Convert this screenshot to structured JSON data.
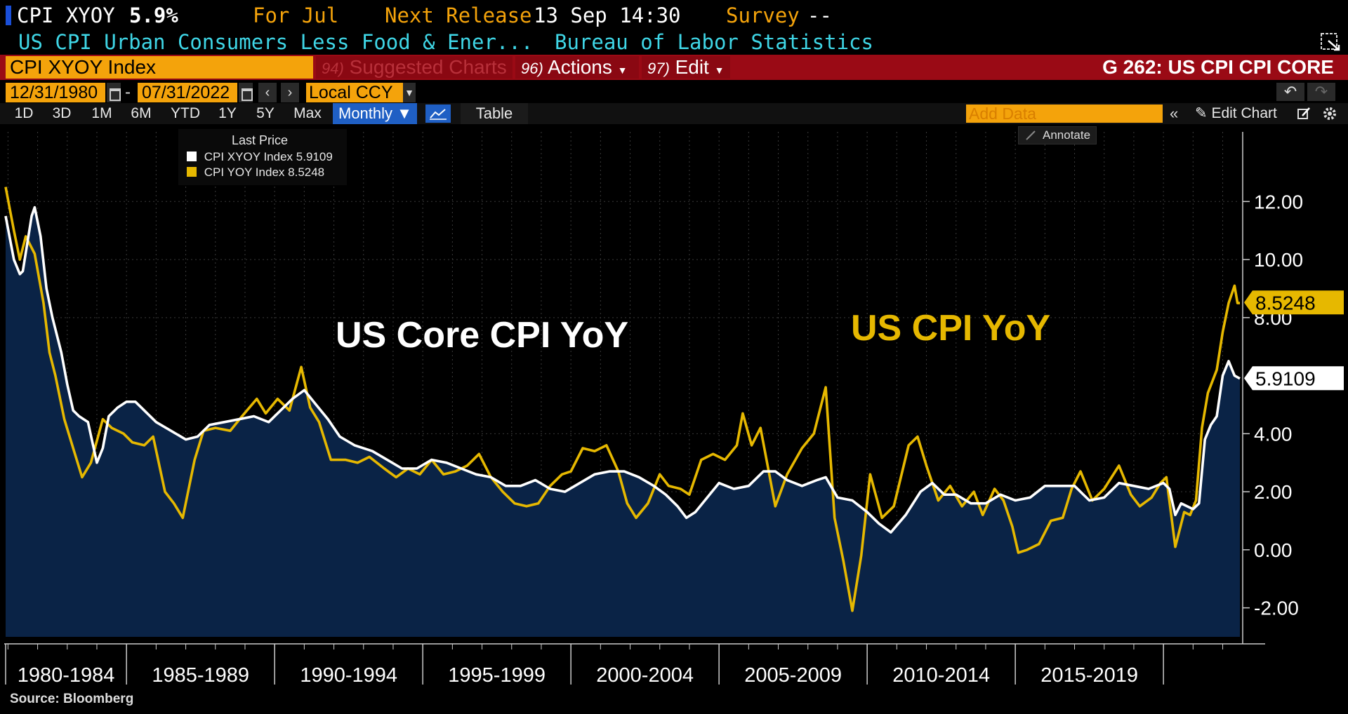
{
  "header": {
    "ticker": "CPI XYOY",
    "last_value": "5.9%",
    "for_label": "For Jul",
    "next_release_label": "Next Release",
    "next_release_value": "13 Sep 14:30",
    "survey_label": "Survey",
    "survey_value": "--",
    "description": "US CPI Urban Consumers Less Food & Ener...",
    "source_agency": "Bureau of Labor Statistics"
  },
  "toolbar": {
    "ticker_input": "CPI XYOY Index",
    "suggested_num": "94)",
    "suggested_label": "Suggested Charts",
    "actions_num": "96)",
    "actions_label": "Actions",
    "edit_num": "97)",
    "edit_label": "Edit",
    "chart_id": "G 262: US CPI CPI CORE",
    "start_date": "12/31/1980",
    "date_sep": "-",
    "end_date": "07/31/2022",
    "currency": "Local CCY",
    "ranges": [
      "1D",
      "3D",
      "1M",
      "6M",
      "YTD",
      "1Y",
      "5Y",
      "Max"
    ],
    "frequency": "Monthly",
    "table_label": "Table",
    "add_data_placeholder": "Add Data",
    "edit_chart_label": "Edit Chart",
    "annotate_label": "Annotate"
  },
  "legend": {
    "title": "Last Price",
    "items": [
      {
        "name": "CPI XYOY Index",
        "value": "5.9109",
        "color": "#ffffff"
      },
      {
        "name": "CPI YOY Index",
        "value": "8.5248",
        "color": "#e6b800"
      }
    ]
  },
  "colors": {
    "core_line": "#ffffff",
    "headline_line": "#e6b800",
    "area_fill": "#0a2346",
    "background": "#000000",
    "orange": "#f4a30b",
    "red_bar": "#9a0a15"
  },
  "chart_data": {
    "type": "line",
    "x_range": [
      1980.92,
      2022.58
    ],
    "ylim": [
      -3,
      14.4
    ],
    "y_ticks": [
      "12.00",
      "10.00",
      "8.00",
      "4.00",
      "2.00",
      "0.00",
      "-2.00"
    ],
    "y_tick_values": [
      12,
      10,
      8,
      4,
      2,
      0,
      -2
    ],
    "x_tick_labels": [
      "1980-1984",
      "1985-1989",
      "1990-1994",
      "1995-1999",
      "2000-2004",
      "2005-2009",
      "2010-2014",
      "2015-2019"
    ],
    "x_tick_starts": [
      1980,
      1985,
      1990,
      1995,
      2000,
      2005,
      2010,
      2015
    ],
    "annotations": [
      "US Core CPI YoY",
      "US CPI YoY"
    ],
    "last_labels": {
      "core": "5.9109",
      "headline": "8.5248"
    },
    "source": "Source: Bloomberg",
    "series": [
      {
        "name": "CPI XYOY Index",
        "style": "area",
        "points": [
          [
            1980.92,
            11.5
          ],
          [
            1981.2,
            10.0
          ],
          [
            1981.4,
            9.5
          ],
          [
            1981.5,
            9.6
          ],
          [
            1981.8,
            11.5
          ],
          [
            1981.9,
            11.8
          ],
          [
            1982.1,
            10.8
          ],
          [
            1982.3,
            9.0
          ],
          [
            1982.5,
            8.0
          ],
          [
            1982.8,
            6.8
          ],
          [
            1983.0,
            5.7
          ],
          [
            1983.2,
            4.8
          ],
          [
            1983.4,
            4.6
          ],
          [
            1983.7,
            4.4
          ],
          [
            1984.0,
            3.0
          ],
          [
            1984.2,
            3.5
          ],
          [
            1984.4,
            4.6
          ],
          [
            1984.7,
            4.9
          ],
          [
            1985.0,
            5.1
          ],
          [
            1985.3,
            5.1
          ],
          [
            1985.5,
            4.9
          ],
          [
            1986.0,
            4.4
          ],
          [
            1986.5,
            4.1
          ],
          [
            1987.0,
            3.8
          ],
          [
            1987.4,
            3.9
          ],
          [
            1987.8,
            4.3
          ],
          [
            1988.3,
            4.4
          ],
          [
            1988.8,
            4.5
          ],
          [
            1989.3,
            4.6
          ],
          [
            1989.8,
            4.4
          ],
          [
            1990.3,
            4.9
          ],
          [
            1990.6,
            5.2
          ],
          [
            1991.0,
            5.5
          ],
          [
            1991.4,
            5.0
          ],
          [
            1991.8,
            4.5
          ],
          [
            1992.2,
            3.9
          ],
          [
            1992.7,
            3.6
          ],
          [
            1993.3,
            3.4
          ],
          [
            1993.8,
            3.1
          ],
          [
            1994.3,
            2.8
          ],
          [
            1994.8,
            2.8
          ],
          [
            1995.3,
            3.1
          ],
          [
            1995.8,
            3.0
          ],
          [
            1996.3,
            2.8
          ],
          [
            1996.8,
            2.6
          ],
          [
            1997.3,
            2.5
          ],
          [
            1997.8,
            2.2
          ],
          [
            1998.3,
            2.2
          ],
          [
            1998.8,
            2.4
          ],
          [
            1999.3,
            2.1
          ],
          [
            1999.8,
            2.0
          ],
          [
            2000.3,
            2.3
          ],
          [
            2000.8,
            2.6
          ],
          [
            2001.3,
            2.7
          ],
          [
            2001.8,
            2.7
          ],
          [
            2002.3,
            2.5
          ],
          [
            2002.8,
            2.2
          ],
          [
            2003.2,
            1.9
          ],
          [
            2003.6,
            1.5
          ],
          [
            2003.9,
            1.1
          ],
          [
            2004.2,
            1.3
          ],
          [
            2004.6,
            1.8
          ],
          [
            2005.0,
            2.3
          ],
          [
            2005.5,
            2.1
          ],
          [
            2006.0,
            2.2
          ],
          [
            2006.5,
            2.7
          ],
          [
            2006.9,
            2.7
          ],
          [
            2007.3,
            2.4
          ],
          [
            2007.8,
            2.2
          ],
          [
            2008.3,
            2.4
          ],
          [
            2008.6,
            2.5
          ],
          [
            2009.0,
            1.8
          ],
          [
            2009.5,
            1.7
          ],
          [
            2010.0,
            1.3
          ],
          [
            2010.4,
            0.9
          ],
          [
            2010.8,
            0.6
          ],
          [
            2011.3,
            1.2
          ],
          [
            2011.8,
            2.0
          ],
          [
            2012.2,
            2.3
          ],
          [
            2012.6,
            1.9
          ],
          [
            2013.0,
            1.9
          ],
          [
            2013.5,
            1.6
          ],
          [
            2014.0,
            1.6
          ],
          [
            2014.5,
            1.9
          ],
          [
            2015.0,
            1.7
          ],
          [
            2015.5,
            1.8
          ],
          [
            2016.0,
            2.2
          ],
          [
            2016.5,
            2.2
          ],
          [
            2017.0,
            2.2
          ],
          [
            2017.5,
            1.7
          ],
          [
            2018.0,
            1.8
          ],
          [
            2018.5,
            2.3
          ],
          [
            2019.0,
            2.2
          ],
          [
            2019.5,
            2.1
          ],
          [
            2020.0,
            2.3
          ],
          [
            2020.2,
            2.1
          ],
          [
            2020.4,
            1.2
          ],
          [
            2020.6,
            1.6
          ],
          [
            2021.0,
            1.4
          ],
          [
            2021.2,
            1.6
          ],
          [
            2021.4,
            3.8
          ],
          [
            2021.6,
            4.3
          ],
          [
            2021.8,
            4.6
          ],
          [
            2022.0,
            6.0
          ],
          [
            2022.2,
            6.5
          ],
          [
            2022.4,
            6.0
          ],
          [
            2022.58,
            5.9
          ]
        ]
      },
      {
        "name": "CPI YOY Index",
        "style": "line",
        "points": [
          [
            1980.92,
            12.5
          ],
          [
            1981.2,
            11.0
          ],
          [
            1981.4,
            10.0
          ],
          [
            1981.6,
            10.8
          ],
          [
            1981.9,
            10.2
          ],
          [
            1982.2,
            8.5
          ],
          [
            1982.4,
            6.8
          ],
          [
            1982.6,
            6.0
          ],
          [
            1982.9,
            4.5
          ],
          [
            1983.2,
            3.5
          ],
          [
            1983.5,
            2.5
          ],
          [
            1983.8,
            3.0
          ],
          [
            1984.2,
            4.5
          ],
          [
            1984.5,
            4.2
          ],
          [
            1984.9,
            4.0
          ],
          [
            1985.2,
            3.7
          ],
          [
            1985.6,
            3.6
          ],
          [
            1985.9,
            3.9
          ],
          [
            1986.3,
            2.0
          ],
          [
            1986.6,
            1.6
          ],
          [
            1986.9,
            1.1
          ],
          [
            1987.3,
            3.1
          ],
          [
            1987.6,
            4.1
          ],
          [
            1988.0,
            4.2
          ],
          [
            1988.5,
            4.1
          ],
          [
            1988.9,
            4.6
          ],
          [
            1989.4,
            5.2
          ],
          [
            1989.7,
            4.7
          ],
          [
            1990.1,
            5.2
          ],
          [
            1990.5,
            4.8
          ],
          [
            1990.9,
            6.3
          ],
          [
            1991.2,
            4.9
          ],
          [
            1991.5,
            4.4
          ],
          [
            1991.9,
            3.1
          ],
          [
            1992.4,
            3.1
          ],
          [
            1992.8,
            3.0
          ],
          [
            1993.2,
            3.2
          ],
          [
            1993.7,
            2.8
          ],
          [
            1994.1,
            2.5
          ],
          [
            1994.5,
            2.8
          ],
          [
            1994.9,
            2.6
          ],
          [
            1995.3,
            3.1
          ],
          [
            1995.7,
            2.6
          ],
          [
            1996.1,
            2.7
          ],
          [
            1996.5,
            2.9
          ],
          [
            1996.9,
            3.3
          ],
          [
            1997.3,
            2.5
          ],
          [
            1997.7,
            2.0
          ],
          [
            1998.1,
            1.6
          ],
          [
            1998.5,
            1.5
          ],
          [
            1998.9,
            1.6
          ],
          [
            1999.3,
            2.2
          ],
          [
            1999.7,
            2.6
          ],
          [
            2000.0,
            2.7
          ],
          [
            2000.4,
            3.5
          ],
          [
            2000.8,
            3.4
          ],
          [
            2001.2,
            3.6
          ],
          [
            2001.6,
            2.7
          ],
          [
            2001.9,
            1.6
          ],
          [
            2002.2,
            1.1
          ],
          [
            2002.6,
            1.6
          ],
          [
            2003.0,
            2.6
          ],
          [
            2003.3,
            2.2
          ],
          [
            2003.7,
            2.1
          ],
          [
            2004.0,
            1.9
          ],
          [
            2004.4,
            3.1
          ],
          [
            2004.8,
            3.3
          ],
          [
            2005.2,
            3.1
          ],
          [
            2005.6,
            3.6
          ],
          [
            2005.8,
            4.7
          ],
          [
            2006.1,
            3.6
          ],
          [
            2006.4,
            4.2
          ],
          [
            2006.9,
            1.5
          ],
          [
            2007.3,
            2.6
          ],
          [
            2007.8,
            3.5
          ],
          [
            2008.2,
            4.0
          ],
          [
            2008.6,
            5.6
          ],
          [
            2008.9,
            1.1
          ],
          [
            2009.2,
            -0.4
          ],
          [
            2009.5,
            -2.1
          ],
          [
            2009.8,
            -0.2
          ],
          [
            2010.1,
            2.6
          ],
          [
            2010.5,
            1.1
          ],
          [
            2010.9,
            1.5
          ],
          [
            2011.4,
            3.6
          ],
          [
            2011.7,
            3.9
          ],
          [
            2012.0,
            2.9
          ],
          [
            2012.4,
            1.7
          ],
          [
            2012.8,
            2.2
          ],
          [
            2013.2,
            1.5
          ],
          [
            2013.6,
            2.0
          ],
          [
            2013.9,
            1.2
          ],
          [
            2014.3,
            2.1
          ],
          [
            2014.6,
            1.7
          ],
          [
            2014.9,
            0.8
          ],
          [
            2015.1,
            -0.1
          ],
          [
            2015.4,
            0.0
          ],
          [
            2015.8,
            0.2
          ],
          [
            2016.2,
            1.0
          ],
          [
            2016.6,
            1.1
          ],
          [
            2016.9,
            2.1
          ],
          [
            2017.2,
            2.7
          ],
          [
            2017.6,
            1.7
          ],
          [
            2018.0,
            2.1
          ],
          [
            2018.5,
            2.9
          ],
          [
            2018.9,
            1.9
          ],
          [
            2019.2,
            1.5
          ],
          [
            2019.6,
            1.8
          ],
          [
            2019.9,
            2.3
          ],
          [
            2020.1,
            2.5
          ],
          [
            2020.4,
            0.1
          ],
          [
            2020.7,
            1.3
          ],
          [
            2020.9,
            1.2
          ],
          [
            2021.1,
            1.7
          ],
          [
            2021.3,
            4.2
          ],
          [
            2021.5,
            5.4
          ],
          [
            2021.8,
            6.2
          ],
          [
            2022.0,
            7.5
          ],
          [
            2022.2,
            8.5
          ],
          [
            2022.4,
            9.1
          ],
          [
            2022.5,
            8.5
          ],
          [
            2022.58,
            8.5
          ]
        ]
      }
    ]
  }
}
